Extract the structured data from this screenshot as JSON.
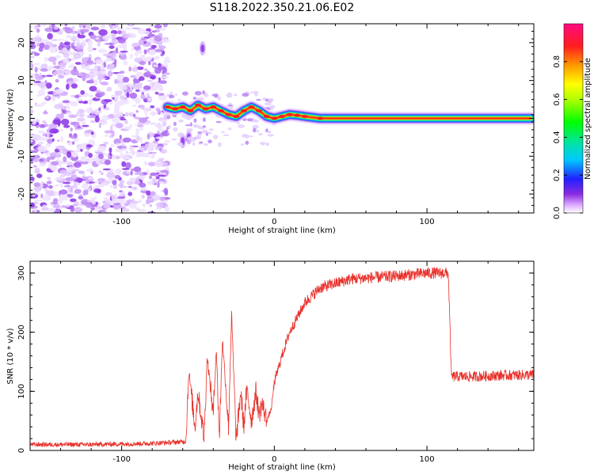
{
  "title": "S118.2022.350.21.06.E02",
  "colors": {
    "snr_line": "#e8302a",
    "noise": "#8a33e6"
  },
  "chart_data": [
    {
      "type": "heatmap",
      "xlabel": "Height of straight line (km)",
      "ylabel": "Frequency (Hz)",
      "xlim": [
        -160,
        170
      ],
      "ylim": [
        -25,
        25
      ],
      "x_ticks": [
        -100,
        0,
        100
      ],
      "y_ticks": [
        -20,
        -10,
        0,
        10,
        20
      ],
      "colorbar": {
        "label": "Normalized spectral amplitude",
        "range": [
          0.0,
          1.0
        ],
        "ticks": [
          0.0,
          0.2,
          0.4,
          0.6,
          0.8
        ],
        "tick_labels": [
          "0.0",
          "0.2",
          "0.4",
          "0.6",
          "0.8"
        ],
        "colormap": "rainbow"
      },
      "noise_region": {
        "x": [
          -160,
          -70
        ],
        "y": [
          -25,
          25
        ],
        "amplitude": [
          0.1,
          0.4
        ]
      },
      "signal_ridge": [
        {
          "x": -70,
          "y": 3
        },
        {
          "x": -65,
          "y": 2.5
        },
        {
          "x": -60,
          "y": 3
        },
        {
          "x": -55,
          "y": 2
        },
        {
          "x": -50,
          "y": 3.5
        },
        {
          "x": -45,
          "y": 2.5
        },
        {
          "x": -40,
          "y": 3
        },
        {
          "x": -35,
          "y": 2
        },
        {
          "x": -30,
          "y": 1
        },
        {
          "x": -25,
          "y": 0.5
        },
        {
          "x": -20,
          "y": 2
        },
        {
          "x": -15,
          "y": 3
        },
        {
          "x": -10,
          "y": 2
        },
        {
          "x": -5,
          "y": 0.5
        },
        {
          "x": 0,
          "y": 0
        },
        {
          "x": 5,
          "y": 0.5
        },
        {
          "x": 10,
          "y": 1
        },
        {
          "x": 15,
          "y": 0.8
        },
        {
          "x": 20,
          "y": 0.5
        },
        {
          "x": 30,
          "y": 0
        },
        {
          "x": 100,
          "y": 0
        },
        {
          "x": 168,
          "y": 0
        }
      ],
      "secondary_features": [
        {
          "x": -47,
          "y": 18.5
        },
        {
          "x": -56,
          "y": -5
        },
        {
          "x": -60,
          "y": -6
        }
      ]
    },
    {
      "type": "line",
      "xlabel": "Height of straight line (km)",
      "ylabel": "SNR (10 * v/v)",
      "xlim": [
        -160,
        170
      ],
      "ylim": [
        0,
        320
      ],
      "x_ticks": [
        -100,
        0,
        100
      ],
      "y_ticks": [
        0,
        100,
        200,
        300
      ],
      "series": [
        {
          "x": [
            -160,
            -120,
            -80,
            -58,
            -56,
            -52,
            -50,
            -46,
            -44,
            -40,
            -38,
            -36,
            -34,
            -30,
            -28,
            -25,
            -22,
            -20,
            -18,
            -15,
            -12,
            -10,
            -8,
            -5,
            -2,
            0,
            5,
            10,
            20,
            30,
            50,
            80,
            100,
            114,
            116,
            130,
            150,
            170
          ],
          "values": [
            10,
            10,
            12,
            15,
            135,
            40,
            100,
            20,
            160,
            60,
            175,
            20,
            190,
            40,
            230,
            15,
            100,
            40,
            105,
            50,
            100,
            60,
            80,
            50,
            70,
            115,
            160,
            200,
            250,
            275,
            290,
            295,
            300,
            300,
            125,
            125,
            127,
            128
          ]
        }
      ]
    }
  ]
}
